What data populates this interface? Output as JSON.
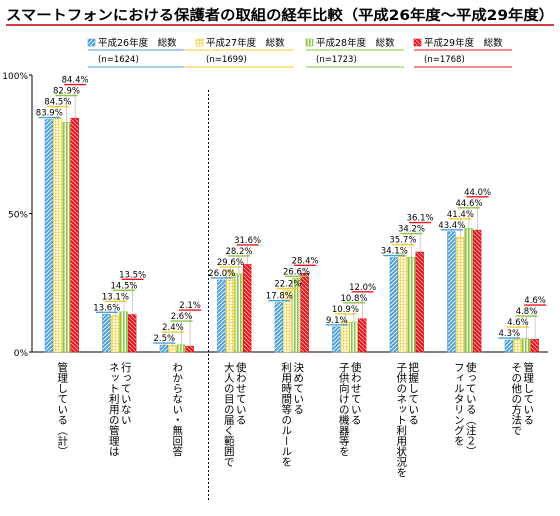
{
  "chart_data": {
    "type": "bar",
    "title": "スマートフォンにおける保護者の取組の経年比較（平成26年度～平成29年度）",
    "ylim": [
      0,
      100
    ],
    "yticks": [
      "0%",
      "50%",
      "100%"
    ],
    "grid": false,
    "legend_position": "top",
    "categories": [
      [
        "管理している（計）"
      ],
      [
        "ネット利用の管理は",
        "行っていない"
      ],
      [
        "わからない・無回答"
      ],
      [
        "大人の目の届く範囲で",
        "使わせている"
      ],
      [
        "利用時間等のルールを",
        "決めている"
      ],
      [
        "子供向けの機器等を",
        "使わせている"
      ],
      [
        "子供のネット利用状況を",
        "把握している"
      ],
      [
        "フィルタリングを",
        "使っている（注２）"
      ],
      [
        "その他の方法で",
        "管理している"
      ]
    ],
    "series": [
      {
        "name": "平成26年度　総数",
        "n": "(n=1624)",
        "color": "#4a9fd9",
        "values": [
          83.9,
          13.6,
          2.5,
          26.0,
          17.8,
          9.1,
          34.1,
          43.4,
          4.3
        ]
      },
      {
        "name": "平成27年度　総数",
        "n": "(n=1699)",
        "color": "#f2cd2e",
        "values": [
          84.5,
          13.1,
          2.4,
          29.6,
          22.2,
          10.9,
          35.7,
          41.4,
          4.6
        ]
      },
      {
        "name": "平成28年度　総数",
        "n": "(n=1723)",
        "color": "#8cc63f",
        "values": [
          82.9,
          14.5,
          2.6,
          28.2,
          26.6,
          10.8,
          34.2,
          44.6,
          4.8
        ]
      },
      {
        "name": "平成29年度　総数",
        "n": "(n=1768)",
        "color": "#e8141c",
        "values": [
          84.4,
          13.5,
          2.1,
          31.6,
          28.4,
          12.0,
          36.1,
          44.0,
          4.6
        ]
      }
    ],
    "value_labels": [
      [
        "83.9%",
        "84.5%",
        "82.9%",
        "84.4%"
      ],
      [
        "13.6%",
        "13.1%",
        "14.5%",
        "13.5%"
      ],
      [
        "2.5%",
        "2.4%",
        "2.6%",
        "2.1%"
      ],
      [
        "26.0%",
        "29.6%",
        "28.2%",
        "31.6%"
      ],
      [
        "17.8%",
        "22.2%",
        "26.6%",
        "28.4%"
      ],
      [
        "9.1%",
        "10.9%",
        "10.8%",
        "12.0%"
      ],
      [
        "34.1%",
        "35.7%",
        "34.2%",
        "36.1%"
      ],
      [
        "43.4%",
        "41.4%",
        "44.6%",
        "44.0%"
      ],
      [
        "4.3%",
        "4.6%",
        "4.8%",
        "4.6%"
      ]
    ]
  }
}
